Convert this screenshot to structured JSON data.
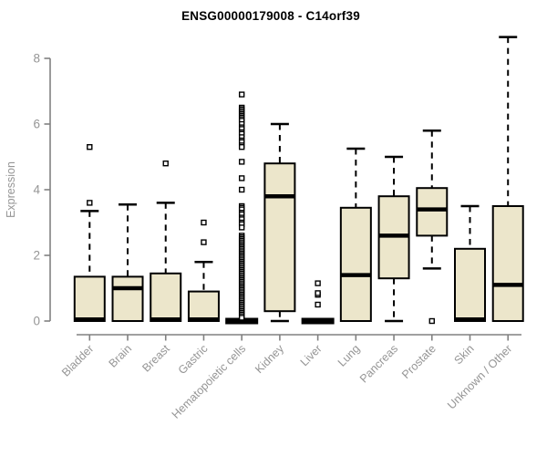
{
  "title": "ENSG00000179008 - C14orf39",
  "colors": {
    "background": "#ffffff",
    "box_fill": "#ece6cb",
    "box_border": "#000000",
    "median": "#000000",
    "whisker": "#000000",
    "outlier_fill": "#ffffff",
    "outlier_border": "#000000",
    "axis_line": "#808080",
    "tick_label": "#959595",
    "title_color": "#000000"
  },
  "chart_data": {
    "type": "boxplot",
    "title": "ENSG00000179008 - C14orf39",
    "xlabel": "",
    "ylabel": "Expression",
    "ylim": [
      0,
      8
    ],
    "yticks": [
      0,
      2,
      4,
      6,
      8
    ],
    "grid": false,
    "legend": "none",
    "categories": [
      "Bladder",
      "Brain",
      "Breast",
      "Gastric",
      "Hematopoietic cells",
      "Kidney",
      "Liver",
      "Lung",
      "Pancreas",
      "Prostate",
      "Skin",
      "Unknown / Other"
    ],
    "series": [
      {
        "name": "Bladder",
        "low": 0,
        "q1": 0,
        "median": 0.05,
        "q3": 1.35,
        "high": 3.35,
        "outliers": [
          3.6,
          5.3
        ]
      },
      {
        "name": "Brain",
        "low": 0,
        "q1": 0,
        "median": 1.0,
        "q3": 1.35,
        "high": 3.55,
        "outliers": []
      },
      {
        "name": "Breast",
        "low": 0,
        "q1": 0,
        "median": 0.05,
        "q3": 1.45,
        "high": 3.6,
        "outliers": [
          4.8
        ]
      },
      {
        "name": "Gastric",
        "low": 0,
        "q1": 0,
        "median": 0.05,
        "q3": 0.9,
        "high": 1.8,
        "outliers": [
          2.4,
          3.0
        ]
      },
      {
        "name": "Hematopoietic cells",
        "low": 0,
        "q1": 0,
        "median": 0,
        "q3": 0,
        "high": 0,
        "outliers": [
          6.9,
          6.5,
          6.45,
          6.4,
          6.35,
          6.3,
          6.25,
          6.2,
          6.15,
          6.1,
          6.0,
          5.9,
          5.85,
          5.75,
          5.7,
          5.6,
          5.5,
          5.45,
          5.35,
          5.3,
          4.85,
          4.35,
          4.0,
          3.5,
          3.45,
          3.4,
          3.3,
          3.25,
          3.15,
          3.1,
          3.0,
          2.95,
          2.85,
          2.6,
          2.55,
          2.5,
          2.45,
          2.4,
          2.35,
          2.3,
          2.25,
          2.2,
          2.15,
          2.1,
          2.05,
          2.0,
          1.95,
          1.9,
          1.85,
          1.8,
          1.75,
          1.7,
          1.65,
          1.6,
          1.55,
          1.5,
          1.45,
          1.4,
          1.35,
          1.3,
          1.25,
          1.2,
          1.15,
          1.1,
          1.05,
          1.0,
          0.95,
          0.9,
          0.85,
          0.8,
          0.75,
          0.7,
          0.65,
          0.6,
          0.55,
          0.5,
          0.45,
          0.4,
          0.35,
          0.3,
          0.25,
          0.2,
          0.15,
          0.1
        ]
      },
      {
        "name": "Kidney",
        "low": 0,
        "q1": 0.3,
        "median": 3.8,
        "q3": 4.8,
        "high": 6.0,
        "outliers": []
      },
      {
        "name": "Liver",
        "low": 0,
        "q1": 0,
        "median": 0,
        "q3": 0,
        "high": 0,
        "outliers": [
          0.5,
          0.8,
          0.85,
          1.15
        ]
      },
      {
        "name": "Lung",
        "low": 0,
        "q1": 0,
        "median": 1.4,
        "q3": 3.45,
        "high": 5.25,
        "outliers": []
      },
      {
        "name": "Pancreas",
        "low": 0,
        "q1": 1.3,
        "median": 2.6,
        "q3": 3.8,
        "high": 5.0,
        "outliers": []
      },
      {
        "name": "Prostate",
        "low": 1.6,
        "q1": 2.6,
        "median": 3.4,
        "q3": 4.05,
        "high": 5.8,
        "outliers": [
          0
        ]
      },
      {
        "name": "Skin",
        "low": 0,
        "q1": 0,
        "median": 0.05,
        "q3": 2.2,
        "high": 3.5,
        "outliers": []
      },
      {
        "name": "Unknown / Other",
        "low": 0,
        "q1": 0,
        "median": 1.1,
        "q3": 3.5,
        "high": 8.65,
        "outliers": []
      }
    ]
  }
}
